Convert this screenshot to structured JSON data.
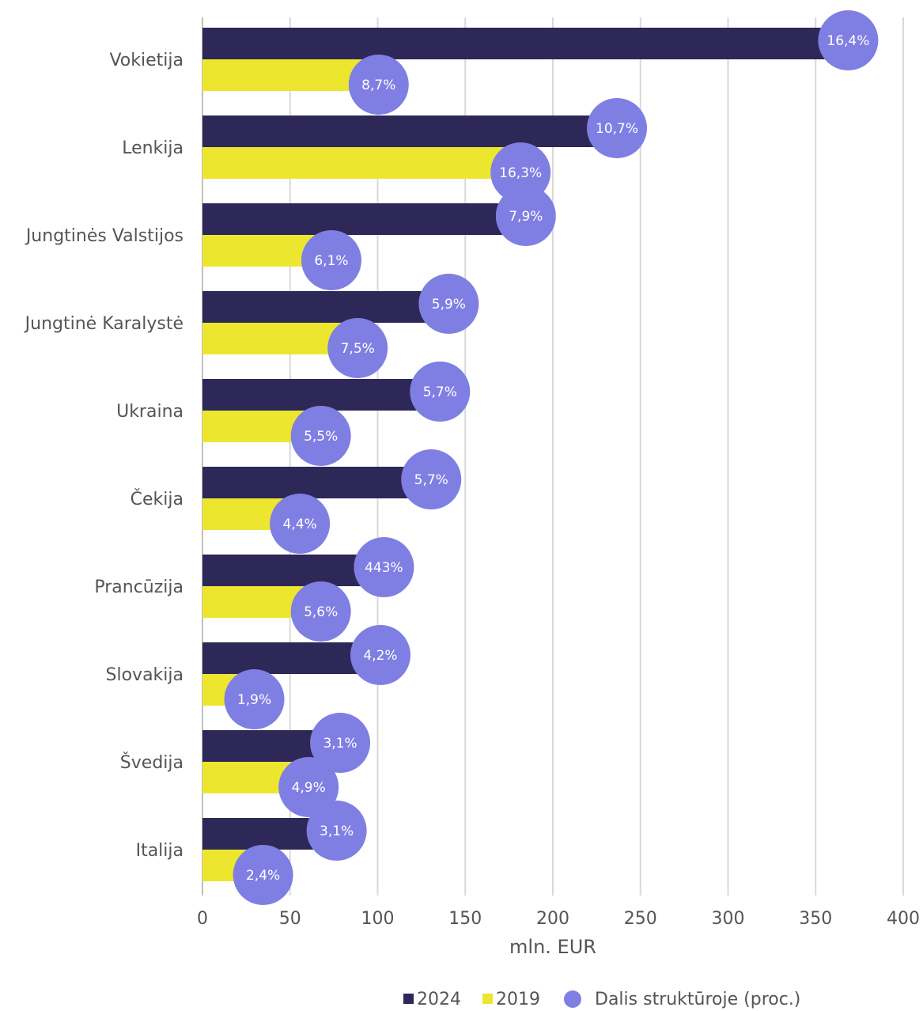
{
  "chart_data": {
    "type": "bar",
    "orientation": "horizontal",
    "title": "",
    "xlabel": "mln. EUR",
    "ylabel": "",
    "xlim": [
      0,
      400
    ],
    "xticks": [
      0,
      50,
      100,
      150,
      200,
      250,
      300,
      350,
      400
    ],
    "grid": "vertical",
    "legend_position": "bottom-right",
    "categories": [
      "Vokietija",
      "Lenkija",
      "Jungtinės Valstijos",
      "Jungtinė Karalystė",
      "Ukraina",
      "Čekija",
      "Prancūzija",
      "Slovakija",
      "Švedija",
      "Italija"
    ],
    "series": [
      {
        "name": "2024",
        "color": "#2d2857",
        "values": [
          360,
          228,
          176,
          132,
          127,
          122,
          95,
          93,
          70,
          68
        ],
        "share_labels": [
          "16,4%",
          "10,7%",
          "7,9%",
          "5,9%",
          "5,7%",
          "5,7%",
          "443%",
          "4,2%",
          "3,1%",
          "3,1%"
        ]
      },
      {
        "name": "2019",
        "color": "#ede62f",
        "values": [
          92,
          173,
          65,
          80,
          59,
          47,
          59,
          21,
          52,
          26
        ],
        "share_labels": [
          "8,7%",
          "16,3%",
          "6,1%",
          "7,5%",
          "5,5%",
          "4,4%",
          "5,6%",
          "1,9%",
          "4,9%",
          "2,4%"
        ]
      }
    ],
    "bubble_series": {
      "name": "Dalis struktūroje (proc.)",
      "color": "#7f7fe3"
    }
  }
}
